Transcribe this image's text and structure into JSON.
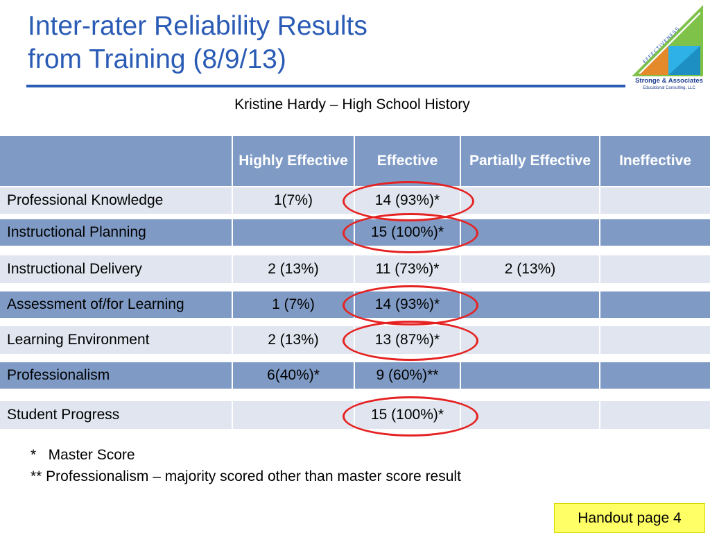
{
  "slide": {
    "title_line1": "Inter-rater Reliability Results",
    "title_line2": "from Training (8/9/13)",
    "subtitle": "Kristine Hardy – High School History",
    "logo": {
      "arc_text": "EFFECTIVENESS",
      "company": "Stronge & Associates",
      "tagline": "Educational Consulting, LLC"
    },
    "colors": {
      "accent": "#2a5bb5",
      "header": "#7f9bc5",
      "light_row": "#e0e5ef",
      "ring": "#e52222",
      "handout": "#ffff66"
    }
  },
  "table": {
    "headers": [
      "",
      "Highly Effective",
      "Effective",
      "Partially Effective",
      "Ineffective"
    ],
    "rows": [
      {
        "label": "Professional Knowledge",
        "values": [
          "1(7%)",
          "14 (93%)*",
          "",
          ""
        ]
      },
      {
        "label": "Instructional Planning",
        "values": [
          "",
          "15 (100%)*",
          "",
          ""
        ]
      },
      {
        "label": "Instructional Delivery",
        "values": [
          "2 (13%)",
          "11 (73%)*",
          "2 (13%)",
          ""
        ]
      },
      {
        "label": "Assessment of/for Learning",
        "values": [
          "1 (7%)",
          "14 (93%)*",
          "",
          ""
        ]
      },
      {
        "label": "Learning Environment",
        "values": [
          "2 (13%)",
          "13 (87%)*",
          "",
          ""
        ]
      },
      {
        "label": "Professionalism",
        "values": [
          "6(40%)*",
          "9 (60%)**",
          "",
          ""
        ]
      },
      {
        "label": "Student Progress",
        "values": [
          "",
          "15 (100%)*",
          "",
          ""
        ]
      }
    ]
  },
  "notes": {
    "line1": "*   Master Score",
    "line2": "** Professionalism – majority scored other than master score result"
  },
  "handout": "Handout page 4"
}
